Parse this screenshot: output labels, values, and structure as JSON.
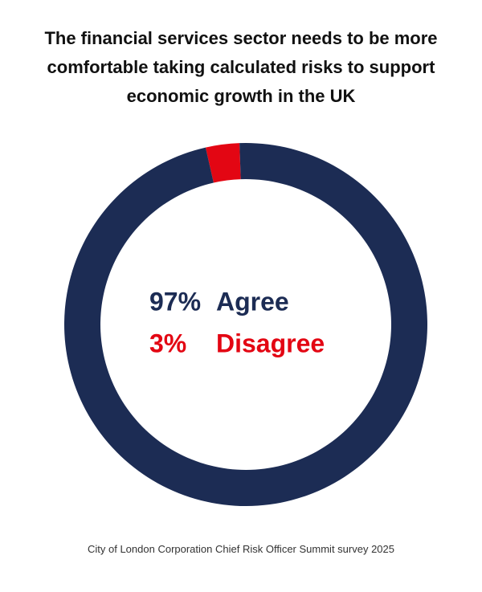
{
  "chart_data": {
    "type": "donut",
    "title": "The financial services sector needs to be more comfortable taking calculated risks to support economic growth in the UK",
    "categories": [
      "Agree",
      "Disagree"
    ],
    "values": [
      97,
      3
    ],
    "value_labels": [
      "97%",
      "3%"
    ],
    "colors": [
      "#1c2c54",
      "#e30613"
    ],
    "source": "City of London Corporation Chief Risk Officer Summit survey 2025"
  }
}
